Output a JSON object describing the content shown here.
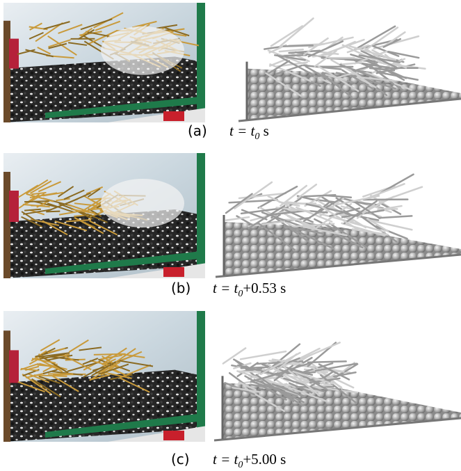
{
  "panels": [
    {
      "label": "(a)",
      "caption": {
        "lead": "t = t",
        "sub": "0",
        "rest": " s"
      }
    },
    {
      "label": "(b)",
      "caption": {
        "lead": "t = t",
        "sub": "0",
        "rest": "+0.53 s"
      }
    },
    {
      "label": "(c)",
      "caption": {
        "lead": "t = t",
        "sub": "0",
        "rest": "+5.00 s"
      }
    }
  ]
}
